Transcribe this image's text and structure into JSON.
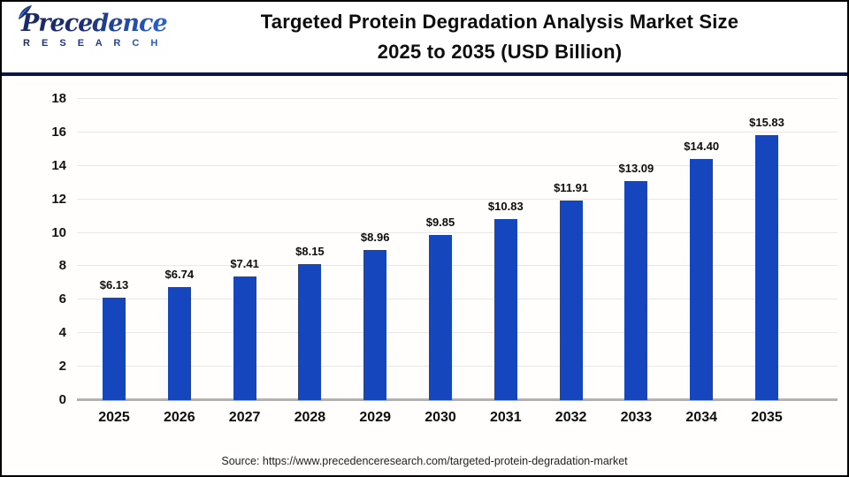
{
  "header": {
    "logo_brand": "Precedence",
    "logo_sub": "R E S E A R C H",
    "title_line1": "Targeted Protein Degradation Analysis Market Size",
    "title_line2": "2025 to 2035 (USD Billion)"
  },
  "chart_data": {
    "type": "bar",
    "title": "Targeted Protein Degradation Analysis Market Size 2025 to 2035 (USD Billion)",
    "categories": [
      "2025",
      "2026",
      "2027",
      "2028",
      "2029",
      "2030",
      "2031",
      "2032",
      "2033",
      "2034",
      "2035"
    ],
    "values": [
      6.13,
      6.74,
      7.41,
      8.15,
      8.96,
      9.85,
      10.83,
      11.91,
      13.09,
      14.4,
      15.83
    ],
    "value_labels": [
      "$6.13",
      "$6.74",
      "$7.41",
      "$8.15",
      "$8.96",
      "$9.85",
      "$10.83",
      "$11.91",
      "$13.09",
      "$14.40",
      "$15.83"
    ],
    "xlabel": "",
    "ylabel": "",
    "ylim": [
      0,
      18
    ],
    "ytick_step": 2,
    "yticks": [
      0,
      2,
      4,
      6,
      8,
      10,
      12,
      14,
      16,
      18
    ],
    "grid": true,
    "legend_position": "none",
    "bar_color": "#1646be"
  },
  "footer": {
    "source": "Source: https://www.precedenceresearch.com/targeted-protein-degradation-market"
  },
  "colors": {
    "bar_blue": "#1646be",
    "divider_navy": "#0d1540",
    "gridline": "#e7e7e7",
    "baseline": "#b2b2b2"
  }
}
